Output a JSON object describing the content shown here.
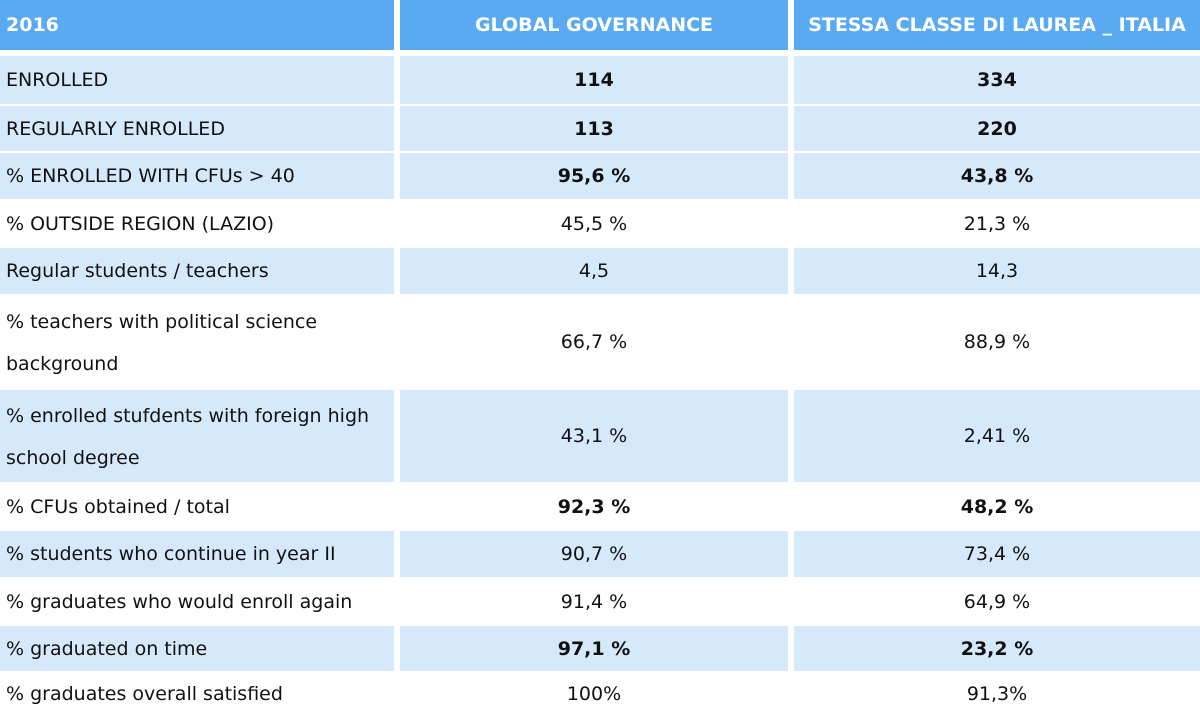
{
  "header": {
    "col1": "2016",
    "col2": "GLOBAL GOVERNANCE",
    "col3": "STESSA CLASSE DI LAUREA _ ITALIA"
  },
  "rows": [
    {
      "label": "ENROLLED",
      "global": "114",
      "italia": "334",
      "bold": true
    },
    {
      "label": "REGULARLY ENROLLED",
      "global": "113",
      "italia": "220",
      "bold": true
    },
    {
      "label": "% ENROLLED WITH CFUs > 40",
      "global": "95,6 %",
      "italia": "43,8 %",
      "bold": true
    },
    {
      "label": "% OUTSIDE REGION (LAZIO)",
      "global": "45,5 %",
      "italia": "21,3 %",
      "bold": false
    },
    {
      "label": "Regular students / teachers",
      "global": "4,5",
      "italia": "14,3",
      "bold": false
    },
    {
      "label": "% teachers with political science background",
      "global": "66,7 %",
      "italia": "88,9 %",
      "bold": false
    },
    {
      "label": "% enrolled stufdents with foreign high school degree",
      "global": "43,1 %",
      "italia": "2,41 %",
      "bold": false
    },
    {
      "label": "% CFUs obtained / total",
      "global": "92,3 %",
      "italia": "48,2 %",
      "bold": true
    },
    {
      "label": "% students who continue in year II",
      "global": "90,7 %",
      "italia": "73,4 %",
      "bold": false
    },
    {
      "label": "% graduates who would enroll again",
      "global": "91,4 %",
      "italia": "64,9 %",
      "bold": false
    },
    {
      "label": "% graduated on time",
      "global": "97,1 %",
      "italia": "23,2 %",
      "bold": true
    },
    {
      "label": "% graduates overall satisfied",
      "global": "100%",
      "italia": "91,3%",
      "bold": false
    }
  ]
}
